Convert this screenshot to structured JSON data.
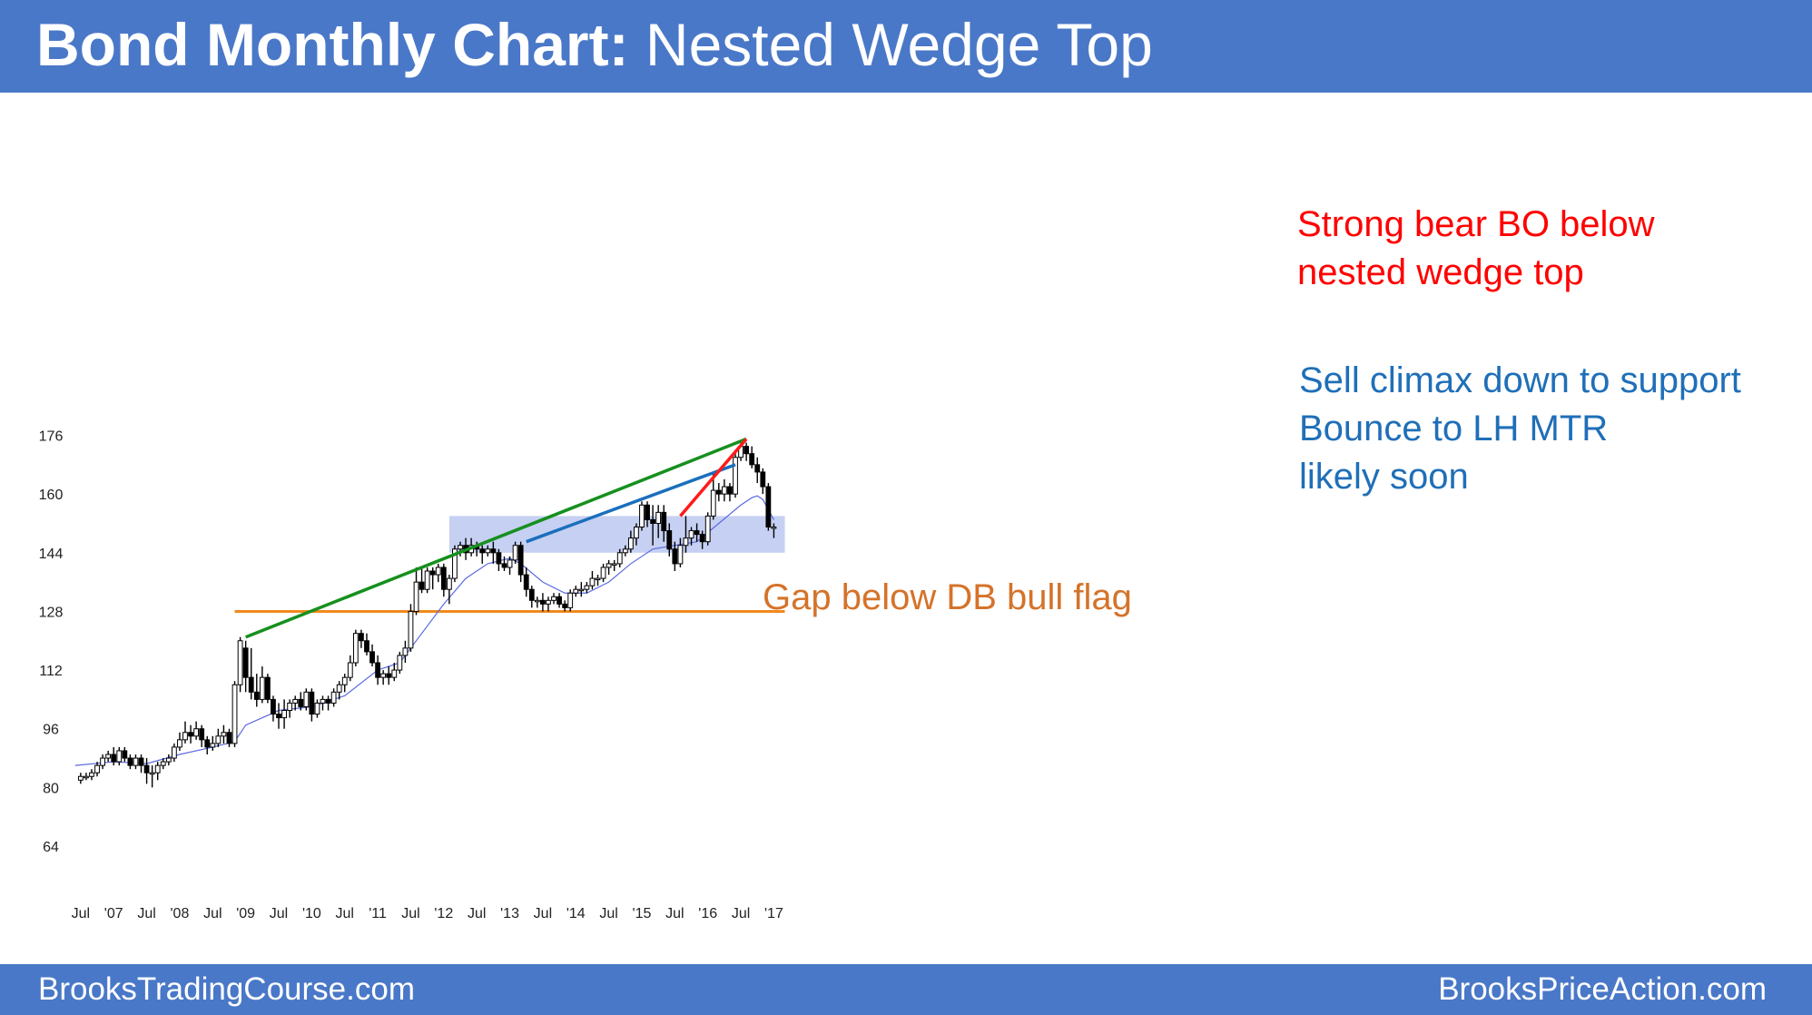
{
  "header": {
    "title_bold": "Bond Monthly Chart:",
    "title_rest": " Nested Wedge Top"
  },
  "footer": {
    "left": "BrooksTradingCourse.com",
    "right": "BrooksPriceAction.com"
  },
  "annotations": {
    "red": [
      "Strong bear BO below",
      "nested wedge top"
    ],
    "blue": [
      "Sell climax down to support",
      "Bounce to LH MTR",
      "likely soon"
    ],
    "orange": "Gap below DB bull flag"
  },
  "colors": {
    "header_bg": "#4a78c8",
    "wedge_green": "#16901e",
    "wedge_blue": "#1a6fbd",
    "wedge_red": "#ff1a1a",
    "support_orange": "#f08a1c",
    "zone_fill": "#c6d0f2",
    "ema_line": "#5a6be0"
  },
  "chart_data": {
    "type": "candlestick",
    "x_unit": "month index (0 = Jan 2006)",
    "yticks": [
      64,
      80,
      96,
      112,
      128,
      144,
      160,
      176
    ],
    "ylim": [
      58,
      182
    ],
    "xticks": [
      {
        "label": "Jul",
        "x": 18
      },
      {
        "label": "'07",
        "x": 24
      },
      {
        "label": "Jul",
        "x": 30
      },
      {
        "label": "'08",
        "x": 36
      },
      {
        "label": "Jul",
        "x": 42
      },
      {
        "label": "'09",
        "x": 48
      },
      {
        "label": "Jul",
        "x": 54
      },
      {
        "label": "'10",
        "x": 60
      },
      {
        "label": "Jul",
        "x": 66
      },
      {
        "label": "'11",
        "x": 72
      },
      {
        "label": "Jul",
        "x": 78
      },
      {
        "label": "'12",
        "x": 84
      },
      {
        "label": "Jul",
        "x": 90
      },
      {
        "label": "'13",
        "x": 96
      },
      {
        "label": "Jul",
        "x": 102
      },
      {
        "label": "'14",
        "x": 108
      },
      {
        "label": "Jul",
        "x": 114
      },
      {
        "label": "'15",
        "x": 120
      },
      {
        "label": "Jul",
        "x": 126
      },
      {
        "label": "'16",
        "x": 132
      },
      {
        "label": "Jul",
        "x": 138
      },
      {
        "label": "'17",
        "x": 144
      }
    ],
    "xlim": [
      17,
      145
    ],
    "candles": [
      [
        18,
        82,
        83,
        81,
        84
      ],
      [
        19,
        83,
        83,
        82,
        84
      ],
      [
        20,
        83,
        84,
        82,
        85
      ],
      [
        21,
        84,
        86,
        83,
        87
      ],
      [
        22,
        86,
        88,
        85,
        89
      ],
      [
        23,
        88,
        89,
        87,
        90
      ],
      [
        24,
        89,
        87,
        86,
        91
      ],
      [
        25,
        87,
        90,
        86,
        91
      ],
      [
        26,
        90,
        88,
        87,
        91
      ],
      [
        27,
        88,
        86,
        85,
        89
      ],
      [
        28,
        86,
        88,
        85,
        89
      ],
      [
        29,
        88,
        86,
        84,
        89
      ],
      [
        30,
        86,
        84,
        81,
        88
      ],
      [
        31,
        84,
        84,
        80,
        86
      ],
      [
        32,
        84,
        86,
        82,
        87
      ],
      [
        33,
        86,
        87,
        85,
        88
      ],
      [
        34,
        87,
        88,
        86,
        89
      ],
      [
        35,
        88,
        91,
        87,
        92
      ],
      [
        36,
        91,
        93,
        90,
        95
      ],
      [
        37,
        93,
        95,
        92,
        98
      ],
      [
        38,
        95,
        94,
        92,
        97
      ],
      [
        39,
        94,
        96,
        93,
        98
      ],
      [
        40,
        96,
        93,
        91,
        97
      ],
      [
        41,
        93,
        91,
        89,
        94
      ],
      [
        42,
        91,
        92,
        90,
        94
      ],
      [
        43,
        92,
        94,
        91,
        96
      ],
      [
        44,
        94,
        95,
        92,
        97
      ],
      [
        45,
        95,
        92,
        91,
        96
      ],
      [
        46,
        92,
        108,
        91,
        109
      ],
      [
        47,
        108,
        120,
        106,
        121
      ],
      [
        48,
        118,
        110,
        106,
        120
      ],
      [
        49,
        110,
        106,
        104,
        118
      ],
      [
        50,
        106,
        104,
        102,
        111
      ],
      [
        51,
        104,
        110,
        103,
        113
      ],
      [
        52,
        110,
        104,
        103,
        111
      ],
      [
        53,
        104,
        100,
        98,
        105
      ],
      [
        54,
        100,
        99,
        96,
        103
      ],
      [
        55,
        99,
        101,
        96,
        104
      ],
      [
        56,
        101,
        103,
        99,
        104
      ],
      [
        57,
        103,
        104,
        101,
        105
      ],
      [
        58,
        104,
        102,
        101,
        106
      ],
      [
        59,
        102,
        106,
        101,
        107
      ],
      [
        60,
        106,
        100,
        98,
        107
      ],
      [
        61,
        100,
        103,
        99,
        104
      ],
      [
        62,
        103,
        104,
        101,
        105
      ],
      [
        63,
        104,
        103,
        101,
        105
      ],
      [
        64,
        103,
        106,
        102,
        107
      ],
      [
        65,
        106,
        108,
        104,
        109
      ],
      [
        66,
        108,
        110,
        106,
        111
      ],
      [
        67,
        110,
        114,
        109,
        116
      ],
      [
        68,
        114,
        122,
        113,
        123
      ],
      [
        69,
        122,
        120,
        118,
        123
      ],
      [
        70,
        120,
        117,
        116,
        122
      ],
      [
        71,
        117,
        114,
        113,
        119
      ],
      [
        72,
        114,
        110,
        108,
        116
      ],
      [
        73,
        110,
        111,
        108,
        112
      ],
      [
        74,
        111,
        110,
        108,
        113
      ],
      [
        75,
        110,
        112,
        109,
        114
      ],
      [
        76,
        112,
        116,
        111,
        117
      ],
      [
        77,
        116,
        118,
        114,
        120
      ],
      [
        78,
        118,
        128,
        117,
        130
      ],
      [
        79,
        128,
        136,
        127,
        140
      ],
      [
        80,
        136,
        134,
        133,
        140
      ],
      [
        81,
        134,
        139,
        133,
        140
      ],
      [
        82,
        139,
        138,
        134,
        140
      ],
      [
        83,
        138,
        140,
        136,
        141
      ],
      [
        84,
        140,
        134,
        132,
        141
      ],
      [
        85,
        134,
        137,
        130,
        138
      ],
      [
        86,
        137,
        145,
        136,
        146
      ],
      [
        87,
        145,
        146,
        143,
        147
      ],
      [
        88,
        146,
        144,
        142,
        148
      ],
      [
        89,
        144,
        146,
        143,
        148
      ],
      [
        90,
        146,
        145,
        143,
        147
      ],
      [
        91,
        145,
        144,
        141,
        146
      ],
      [
        92,
        144,
        145,
        143,
        146
      ],
      [
        93,
        145,
        144,
        141,
        147
      ],
      [
        94,
        144,
        141,
        139,
        145
      ],
      [
        95,
        141,
        140,
        139,
        143
      ],
      [
        96,
        140,
        142,
        138,
        143
      ],
      [
        97,
        142,
        146,
        141,
        147
      ],
      [
        98,
        146,
        138,
        136,
        147
      ],
      [
        99,
        138,
        134,
        132,
        140
      ],
      [
        100,
        134,
        131,
        129,
        135
      ],
      [
        101,
        131,
        131,
        129,
        132
      ],
      [
        102,
        131,
        130,
        128,
        133
      ],
      [
        103,
        130,
        131,
        128,
        132
      ],
      [
        104,
        131,
        132,
        130,
        133
      ],
      [
        105,
        132,
        130,
        129,
        133
      ],
      [
        106,
        130,
        129,
        128,
        131
      ],
      [
        107,
        129,
        133,
        128,
        134
      ],
      [
        108,
        133,
        134,
        132,
        135
      ],
      [
        109,
        134,
        134,
        132,
        136
      ],
      [
        110,
        134,
        135,
        133,
        136
      ],
      [
        111,
        135,
        137,
        134,
        139
      ],
      [
        112,
        137,
        137,
        135,
        138
      ],
      [
        113,
        137,
        140,
        136,
        141
      ],
      [
        114,
        140,
        141,
        138,
        142
      ],
      [
        115,
        141,
        141,
        139,
        142
      ],
      [
        116,
        141,
        144,
        140,
        145
      ],
      [
        117,
        144,
        145,
        143,
        146
      ],
      [
        118,
        145,
        148,
        144,
        150
      ],
      [
        119,
        148,
        151,
        146,
        152
      ],
      [
        120,
        151,
        157,
        150,
        158
      ],
      [
        121,
        157,
        153,
        151,
        158
      ],
      [
        122,
        153,
        152,
        146,
        157
      ],
      [
        123,
        152,
        155,
        148,
        157
      ],
      [
        124,
        155,
        150,
        147,
        157
      ],
      [
        125,
        150,
        145,
        143,
        152
      ],
      [
        126,
        145,
        141,
        139,
        147
      ],
      [
        127,
        141,
        146,
        140,
        148
      ],
      [
        128,
        146,
        148,
        144,
        154
      ],
      [
        129,
        148,
        150,
        146,
        151
      ],
      [
        130,
        150,
        149,
        147,
        152
      ],
      [
        131,
        149,
        147,
        145,
        150
      ],
      [
        132,
        147,
        154,
        146,
        155
      ],
      [
        133,
        154,
        161,
        153,
        166
      ],
      [
        134,
        161,
        160,
        158,
        163
      ],
      [
        135,
        160,
        162,
        158,
        164
      ],
      [
        136,
        162,
        160,
        158,
        163
      ],
      [
        137,
        160,
        170,
        159,
        172
      ],
      [
        138,
        170,
        173,
        169,
        174
      ],
      [
        139,
        173,
        171,
        169,
        174
      ],
      [
        140,
        171,
        168,
        167,
        173
      ],
      [
        141,
        168,
        166,
        163,
        170
      ],
      [
        142,
        166,
        162,
        160,
        167
      ],
      [
        143,
        162,
        151,
        150,
        163
      ],
      [
        144,
        151,
        151,
        148,
        152
      ]
    ],
    "ema": [
      [
        17,
        86
      ],
      [
        24,
        87
      ],
      [
        30,
        86.5
      ],
      [
        36,
        89
      ],
      [
        42,
        91
      ],
      [
        46,
        92.5
      ],
      [
        48,
        97
      ],
      [
        54,
        101
      ],
      [
        60,
        102
      ],
      [
        66,
        105
      ],
      [
        72,
        112
      ],
      [
        76,
        114
      ],
      [
        80,
        122
      ],
      [
        84,
        130
      ],
      [
        88,
        137
      ],
      [
        92,
        141
      ],
      [
        96,
        142.5
      ],
      [
        98,
        141
      ],
      [
        102,
        136
      ],
      [
        106,
        133
      ],
      [
        110,
        133
      ],
      [
        114,
        136
      ],
      [
        118,
        141
      ],
      [
        122,
        145
      ],
      [
        126,
        146
      ],
      [
        130,
        147
      ],
      [
        134,
        152
      ],
      [
        138,
        157
      ],
      [
        140,
        159
      ],
      [
        141,
        159.5
      ],
      [
        142,
        158.5
      ],
      [
        144,
        153
      ]
    ],
    "lines": [
      {
        "name": "green",
        "from": [
          48,
          121
        ],
        "to": [
          139,
          175
        ]
      },
      {
        "name": "blue",
        "from": [
          99,
          147
        ],
        "to": [
          137,
          168
        ]
      },
      {
        "name": "red",
        "from": [
          127,
          154
        ],
        "to": [
          139,
          175
        ]
      }
    ],
    "zone": {
      "x_from": 85,
      "x_to": 146,
      "y_from": 144,
      "y_to": 154
    },
    "support": {
      "y": 128,
      "x_from": 46,
      "x_to": 146
    }
  }
}
